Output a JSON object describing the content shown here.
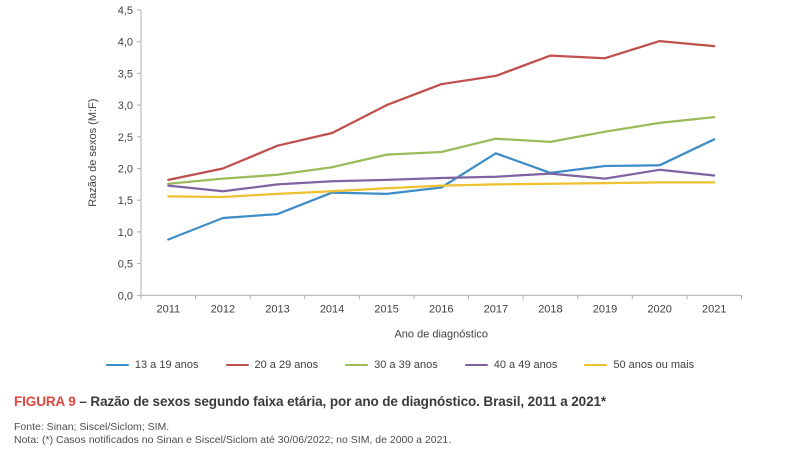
{
  "figure": {
    "caption_label": "FIGURA 9",
    "caption_text": "– Razão de sexos segundo faixa etária, por ano de diagnóstico. Brasil, 2011 a 2021*",
    "fonte": "Fonte: Sinan; Siscel/Siclom; SIM.",
    "nota": "Nota: (*) Casos notificados no Sinan e Siscel/Siclom até 30/06/2022; no SIM, de 2000 a 2021."
  },
  "colors": {
    "caption_label_red": "#e2453c",
    "caption_text_dark": "#3a3a3a",
    "footer_gray": "#4d4d4d",
    "axis_gray": "#adadad",
    "tick_text": "#404040"
  },
  "chart_data": {
    "type": "line",
    "title": "",
    "xlabel": "Ano de diagnóstico",
    "ylabel": "Razão de sexos (M:F)",
    "x": [
      "2011",
      "2012",
      "2013",
      "2014",
      "2015",
      "2016",
      "2017",
      "2018",
      "2019",
      "2020",
      "2021"
    ],
    "y_ticks": [
      "0,0",
      "0,5",
      "1,0",
      "1,5",
      "2,0",
      "2,5",
      "3,0",
      "3,5",
      "4,0",
      "4,5"
    ],
    "ylim": [
      0,
      4.5
    ],
    "y_step": 0.5,
    "grid": false,
    "legend_position": "bottom",
    "series": [
      {
        "name": "13 a 19 anos",
        "color": "#3e8dc6",
        "values": [
          0.88,
          1.22,
          1.28,
          1.62,
          1.6,
          1.7,
          2.24,
          1.93,
          2.04,
          2.05,
          2.46
        ]
      },
      {
        "name": "20 a 29 anos",
        "color": "#c0504d",
        "values": [
          1.82,
          2.0,
          2.36,
          2.56,
          3.0,
          3.33,
          3.46,
          3.78,
          3.74,
          4.01,
          3.93
        ]
      },
      {
        "name": "30 a 39 anos",
        "color": "#9bbb59",
        "values": [
          1.76,
          1.84,
          1.9,
          2.02,
          2.22,
          2.26,
          2.47,
          2.42,
          2.58,
          2.72,
          2.81
        ]
      },
      {
        "name": "40 a 49 anos",
        "color": "#8064a2",
        "values": [
          1.73,
          1.64,
          1.75,
          1.8,
          1.82,
          1.85,
          1.87,
          1.92,
          1.84,
          1.98,
          1.89
        ]
      },
      {
        "name": "50 anos ou mais",
        "color": "#efc02f",
        "values": [
          1.56,
          1.55,
          1.6,
          1.64,
          1.69,
          1.73,
          1.75,
          1.76,
          1.77,
          1.78,
          1.78
        ]
      }
    ]
  }
}
